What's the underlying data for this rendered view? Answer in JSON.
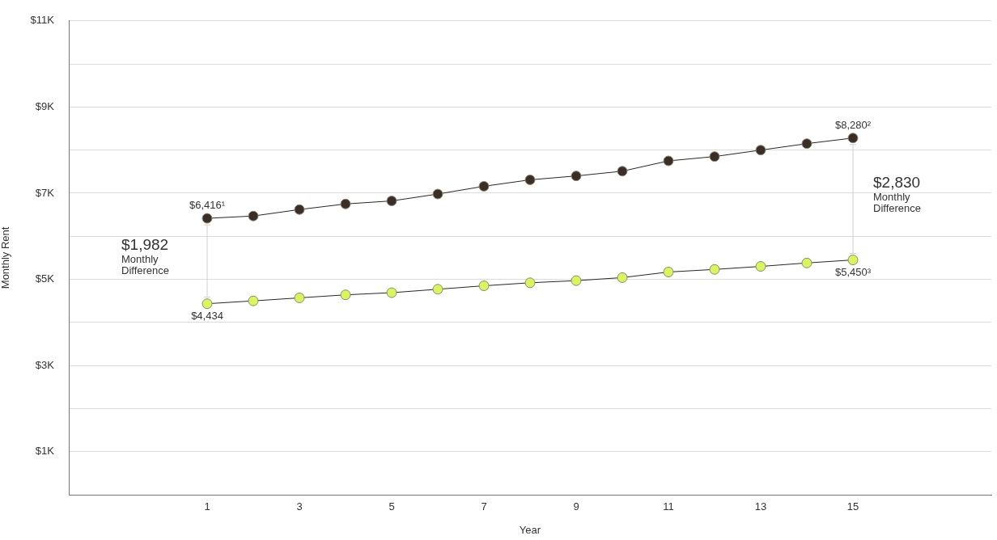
{
  "chart_data": {
    "type": "line",
    "xlabel": "Year",
    "ylabel": "Monthly Rent",
    "x": [
      1,
      2,
      3,
      4,
      5,
      6,
      7,
      8,
      9,
      10,
      11,
      12,
      13,
      14,
      15
    ],
    "series": [
      {
        "color": "#3a2e25",
        "values": [
          6416,
          6470,
          6620,
          6750,
          6820,
          6980,
          7160,
          7310,
          7400,
          7510,
          7750,
          7850,
          8000,
          8150,
          8280
        ],
        "value_labels": [
          "$6,416¹",
          null,
          null,
          null,
          null,
          null,
          null,
          null,
          null,
          null,
          null,
          null,
          null,
          null,
          "$8,280²"
        ]
      },
      {
        "color": "#d8f55c",
        "values": [
          4434,
          4500,
          4570,
          4640,
          4690,
          4770,
          4850,
          4920,
          4970,
          5040,
          5170,
          5230,
          5300,
          5380,
          5450
        ],
        "value_labels": [
          "$4,434",
          null,
          null,
          null,
          null,
          null,
          null,
          null,
          null,
          null,
          null,
          null,
          null,
          null,
          "$5,450³"
        ]
      }
    ],
    "xlim": [
      -2,
      18
    ],
    "xticks": [
      1,
      3,
      5,
      7,
      9,
      11,
      13,
      15
    ],
    "ylim": [
      0,
      11000
    ],
    "yticks": [
      {
        "value": 0,
        "label": null
      },
      {
        "value": 1000,
        "label": "$1K"
      },
      {
        "value": 2000,
        "label": null
      },
      {
        "value": 3000,
        "label": "$3K"
      },
      {
        "value": 4000,
        "label": null
      },
      {
        "value": 5000,
        "label": "$5K"
      },
      {
        "value": 6000,
        "label": null
      },
      {
        "value": 7000,
        "label": "$7K"
      },
      {
        "value": 8000,
        "label": null
      },
      {
        "value": 9000,
        "label": "$9K"
      },
      {
        "value": 10000,
        "label": null
      },
      {
        "value": 11000,
        "label": "$11K"
      }
    ],
    "annotations": [
      "$1,982 Monthly Difference",
      "$2,830 Monthly Difference"
    ],
    "grid": "y",
    "legend": false,
    "marker": "circle",
    "line_style": "solid"
  }
}
